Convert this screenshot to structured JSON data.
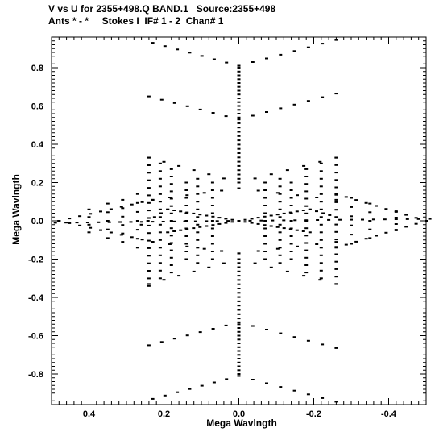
{
  "header": {
    "line1": "V vs U for 2355+498.Q BAND.1   Source:2355+498",
    "line2": "Ants * - *     Stokes I  IF# 1 - 2  Chan# 1"
  },
  "chart_data": {
    "type": "scatter",
    "xlabel": "Mega Wavlngth",
    "ylabel": "Mega Wavlngth",
    "xlim": [
      0.5,
      -0.5
    ],
    "ylim": [
      -0.96,
      0.96
    ],
    "x_reversed": true,
    "xticks": [
      0.4,
      0.2,
      0.0,
      -0.2,
      -0.4
    ],
    "xtick_labels": [
      "0.4",
      "0.2",
      "0.0",
      "-0.2",
      "-0.4"
    ],
    "yticks": [
      0.8,
      0.6,
      0.4,
      0.2,
      0.0,
      -0.2,
      -0.4,
      -0.6,
      -0.8
    ],
    "ytick_labels": [
      "0.8",
      "0.6",
      "0.4",
      "0.2",
      "0.0",
      "-0.2",
      "-0.4",
      "-0.6",
      "-0.8"
    ],
    "marker_color": "#000000",
    "tracks": [
      {
        "from": [
          0.23,
          0.93
        ],
        "to": [
          0.0,
          0.81
        ],
        "n": 8
      },
      {
        "from": [
          0.0,
          0.81
        ],
        "to": [
          -0.26,
          0.945
        ],
        "n": 8
      },
      {
        "from": [
          0.24,
          0.65
        ],
        "to": [
          0.0,
          0.53
        ],
        "n": 8
      },
      {
        "from": [
          0.0,
          0.53
        ],
        "to": [
          -0.26,
          0.665
        ],
        "n": 8
      },
      {
        "from": [
          0.0,
          0.8
        ],
        "to": [
          0.0,
          0.54
        ],
        "n": 14
      },
      {
        "from": [
          0.0,
          0.51
        ],
        "to": [
          0.0,
          0.22
        ],
        "n": 14
      },
      {
        "from": [
          0.23,
          -0.93
        ],
        "to": [
          0.0,
          -0.81
        ],
        "n": 8
      },
      {
        "from": [
          0.0,
          -0.81
        ],
        "to": [
          -0.26,
          -0.945
        ],
        "n": 8
      },
      {
        "from": [
          0.24,
          -0.65
        ],
        "to": [
          0.0,
          -0.53
        ],
        "n": 8
      },
      {
        "from": [
          0.0,
          -0.53
        ],
        "to": [
          -0.26,
          -0.665
        ],
        "n": 8
      },
      {
        "from": [
          0.0,
          -0.8
        ],
        "to": [
          0.0,
          -0.54
        ],
        "n": 14
      },
      {
        "from": [
          0.0,
          -0.51
        ],
        "to": [
          0.0,
          -0.22
        ],
        "n": 14
      },
      {
        "from": [
          0.49,
          -0.01
        ],
        "to": [
          0.0,
          0.0
        ],
        "n": 18
      },
      {
        "from": [
          0.0,
          0.0
        ],
        "to": [
          -0.51,
          0.01
        ],
        "n": 18
      },
      {
        "from": [
          0.0,
          0.0
        ],
        "to": [
          0.19,
          0.06
        ],
        "n": 12
      },
      {
        "from": [
          0.0,
          0.0
        ],
        "to": [
          0.19,
          -0.06
        ],
        "n": 12
      },
      {
        "from": [
          0.0,
          0.0
        ],
        "to": [
          -0.19,
          0.06
        ],
        "n": 12
      },
      {
        "from": [
          0.0,
          0.0
        ],
        "to": [
          -0.19,
          -0.06
        ],
        "n": 12
      },
      {
        "from": [
          0.19,
          0.06
        ],
        "to": [
          0.26,
          -0.02
        ],
        "n": 5
      },
      {
        "from": [
          -0.19,
          0.06
        ],
        "to": [
          -0.26,
          0.02
        ],
        "n": 5
      },
      {
        "from": [
          0.0,
          0.2
        ],
        "to": [
          0.24,
          0.33
        ],
        "n": 7
      },
      {
        "from": [
          0.0,
          0.2
        ],
        "to": [
          -0.26,
          0.33
        ],
        "n": 7
      },
      {
        "from": [
          0.0,
          -0.2
        ],
        "to": [
          0.24,
          -0.33
        ],
        "n": 7
      },
      {
        "from": [
          0.0,
          -0.2
        ],
        "to": [
          -0.26,
          -0.33
        ],
        "n": 7
      },
      {
        "from": [
          0.23,
          0.11
        ],
        "to": [
          0.0,
          0.17
        ],
        "n": 6
      },
      {
        "from": [
          -0.26,
          0.11
        ],
        "to": [
          0.0,
          0.17
        ],
        "n": 6
      },
      {
        "from": [
          0.23,
          -0.11
        ],
        "to": [
          0.0,
          -0.17
        ],
        "n": 6
      },
      {
        "from": [
          -0.26,
          -0.11
        ],
        "to": [
          0.0,
          -0.17
        ],
        "n": 6
      },
      {
        "from": [
          0.23,
          0.11
        ],
        "to": [
          0.48,
          0.0
        ],
        "n": 10
      },
      {
        "from": [
          0.23,
          -0.11
        ],
        "to": [
          0.48,
          0.0
        ],
        "n": 10
      },
      {
        "from": [
          -0.26,
          0.14
        ],
        "to": [
          -0.5,
          0.0
        ],
        "n": 10
      },
      {
        "from": [
          -0.26,
          -0.14
        ],
        "to": [
          -0.5,
          0.0
        ],
        "n": 10
      },
      {
        "from": [
          0.4,
          0.06
        ],
        "to": [
          0.4,
          -0.06
        ],
        "n": 4
      },
      {
        "from": [
          0.35,
          0.09
        ],
        "to": [
          0.35,
          -0.09
        ],
        "n": 5
      },
      {
        "from": [
          0.31,
          0.11
        ],
        "to": [
          0.31,
          -0.11
        ],
        "n": 6
      },
      {
        "from": [
          0.27,
          0.14
        ],
        "to": [
          0.27,
          -0.14
        ],
        "n": 7
      },
      {
        "from": [
          0.24,
          0.33
        ],
        "to": [
          0.24,
          -0.34
        ],
        "n": 18
      },
      {
        "from": [
          0.21,
          0.3
        ],
        "to": [
          0.21,
          -0.3
        ],
        "n": 16
      },
      {
        "from": [
          0.18,
          0.27
        ],
        "to": [
          0.18,
          -0.27
        ],
        "n": 15
      },
      {
        "from": [
          0.14,
          0.2
        ],
        "to": [
          0.14,
          -0.2
        ],
        "n": 11
      },
      {
        "from": [
          0.11,
          0.22
        ],
        "to": [
          0.11,
          -0.22
        ],
        "n": 12
      },
      {
        "from": [
          0.07,
          0.2
        ],
        "to": [
          0.07,
          -0.2
        ],
        "n": 11
      },
      {
        "from": [
          -0.07,
          0.2
        ],
        "to": [
          -0.07,
          -0.2
        ],
        "n": 11
      },
      {
        "from": [
          -0.11,
          0.22
        ],
        "to": [
          -0.11,
          -0.22
        ],
        "n": 12
      },
      {
        "from": [
          -0.14,
          0.2
        ],
        "to": [
          -0.14,
          -0.2
        ],
        "n": 11
      },
      {
        "from": [
          -0.18,
          0.27
        ],
        "to": [
          -0.18,
          -0.27
        ],
        "n": 15
      },
      {
        "from": [
          -0.22,
          0.3
        ],
        "to": [
          -0.22,
          -0.3
        ],
        "n": 16
      },
      {
        "from": [
          -0.26,
          0.33
        ],
        "to": [
          -0.26,
          -0.33
        ],
        "n": 18
      },
      {
        "from": [
          -0.3,
          0.12
        ],
        "to": [
          -0.3,
          -0.12
        ],
        "n": 6
      },
      {
        "from": [
          -0.35,
          0.09
        ],
        "to": [
          -0.35,
          -0.09
        ],
        "n": 5
      },
      {
        "from": [
          -0.42,
          0.05
        ],
        "to": [
          -0.42,
          -0.05
        ],
        "n": 4
      }
    ]
  }
}
